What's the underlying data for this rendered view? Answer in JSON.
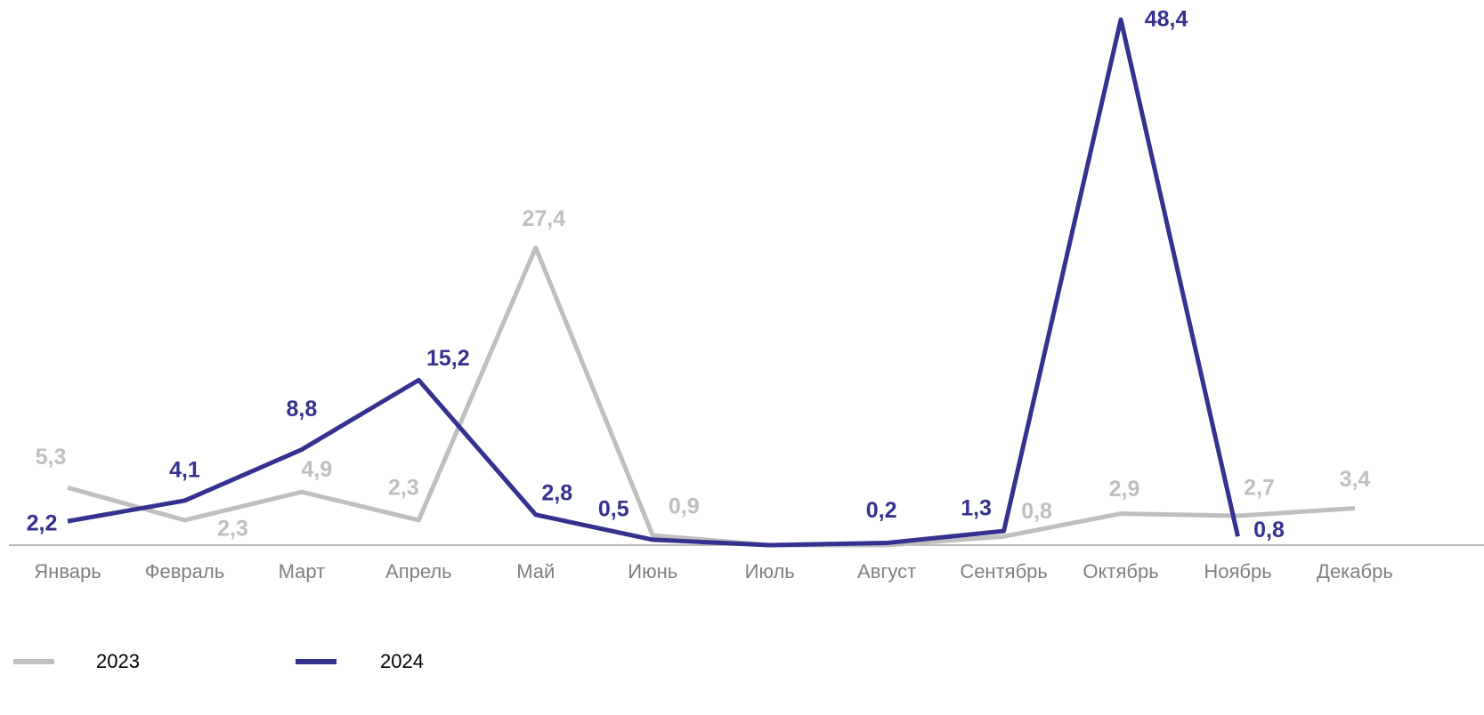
{
  "chart_data": {
    "type": "line",
    "categories": [
      "Январь",
      "Февраль",
      "Март",
      "Апрель",
      "Май",
      "Июнь",
      "Июль",
      "Август",
      "Сентябрь",
      "Октябрь",
      "Ноябрь",
      "Декабрь"
    ],
    "series": [
      {
        "name": "2023",
        "color": "#bfbfbf",
        "values": [
          5.3,
          2.3,
          4.9,
          2.3,
          27.4,
          0.9,
          0,
          0,
          0.8,
          2.9,
          2.7,
          3.4
        ],
        "value_labels": [
          "5,3",
          "2,3",
          "4,9",
          "2,3",
          "27,4",
          "0,9",
          null,
          null,
          "0,8",
          "2,9",
          "2,7",
          "3,4"
        ]
      },
      {
        "name": "2024",
        "color": "#35318f",
        "values": [
          2.2,
          4.1,
          8.8,
          15.2,
          2.8,
          0.5,
          0,
          0.2,
          1.3,
          48.4,
          0.8,
          null
        ],
        "value_labels": [
          "2,2",
          "4,1",
          "8,8",
          "15,2",
          "2,8",
          "0,5",
          null,
          "0,2",
          "1,3",
          "48,4",
          "0,8",
          null
        ]
      }
    ],
    "ylim": [
      0,
      50
    ]
  }
}
